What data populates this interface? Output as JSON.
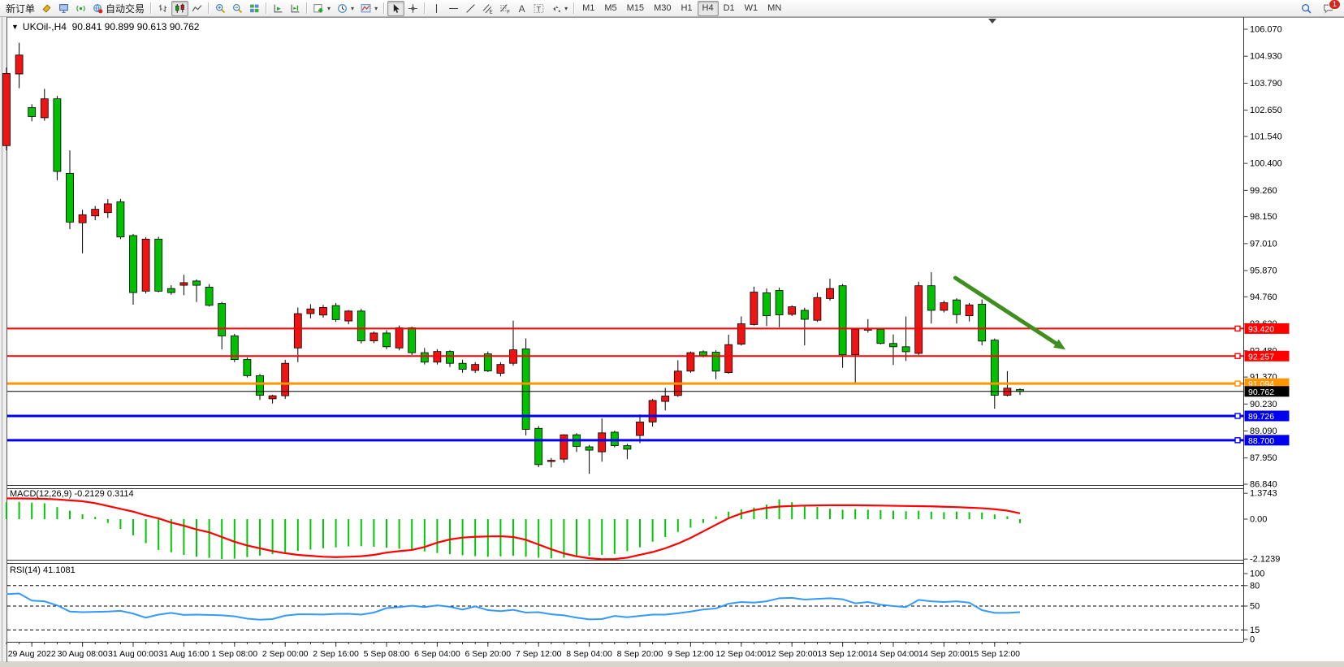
{
  "header": {
    "symbol": "UKOil-,H4",
    "ohlc": "90.841 90.899 90.613 90.762"
  },
  "toolbar": {
    "chat_badge": "1",
    "groups": [
      {
        "items": [
          {
            "name": "new-order-button",
            "label": "新订单"
          },
          {
            "name": "chart-window-icon",
            "icon": "gold-doc"
          },
          {
            "name": "profile-icon",
            "icon": "blue-monitor"
          },
          {
            "name": "signals-icon",
            "icon": "green-signal"
          },
          {
            "name": "auto-trading-button",
            "icon": "globe",
            "label": "自动交易"
          }
        ]
      },
      {
        "items": [
          {
            "name": "bar-chart-type-icon",
            "icon": "bars"
          },
          {
            "name": "candlestick-chart-type-icon",
            "icon": "candles",
            "active": true
          },
          {
            "name": "line-chart-type-icon",
            "icon": "linechart"
          }
        ]
      },
      {
        "items": [
          {
            "name": "zoom-in-icon",
            "icon": "zoom-in"
          },
          {
            "name": "zoom-out-icon",
            "icon": "zoom-out"
          },
          {
            "name": "tile-windows-icon",
            "icon": "tile"
          }
        ]
      },
      {
        "items": [
          {
            "name": "auto-scroll-icon",
            "icon": "autoscroll"
          },
          {
            "name": "chart-shift-icon",
            "icon": "shift"
          }
        ]
      },
      {
        "items": [
          {
            "name": "add-indicator-icon",
            "icon": "indicator-plus",
            "dropdown": true
          },
          {
            "name": "periods-icon",
            "icon": "clock",
            "dropdown": true
          },
          {
            "name": "templates-icon",
            "icon": "template",
            "dropdown": true
          }
        ]
      },
      {
        "items": [
          {
            "name": "cursor-icon",
            "icon": "cursor",
            "active": true
          },
          {
            "name": "crosshair-icon",
            "icon": "crosshair"
          }
        ]
      },
      {
        "items": [
          {
            "name": "vertical-line-icon",
            "icon": "vline"
          },
          {
            "name": "horizontal-line-icon",
            "icon": "hline"
          },
          {
            "name": "trendline-icon",
            "icon": "trend"
          },
          {
            "name": "equidistant-channel-icon",
            "icon": "channel"
          },
          {
            "name": "fibonacci-icon",
            "icon": "fibo"
          },
          {
            "name": "text-icon",
            "icon": "textA"
          },
          {
            "name": "text-label-icon",
            "icon": "textlabel"
          },
          {
            "name": "arrows-icon",
            "icon": "arrows",
            "dropdown": true
          }
        ]
      },
      {
        "items": [
          {
            "name": "tf-m1-button",
            "label": "M1",
            "tf": true
          },
          {
            "name": "tf-m5-button",
            "label": "M5",
            "tf": true
          },
          {
            "name": "tf-m15-button",
            "label": "M15",
            "tf": true
          },
          {
            "name": "tf-m30-button",
            "label": "M30",
            "tf": true
          },
          {
            "name": "tf-h1-button",
            "label": "H1",
            "tf": true
          },
          {
            "name": "tf-h4-button",
            "label": "H4",
            "tf": true,
            "active": true
          },
          {
            "name": "tf-d1-button",
            "label": "D1",
            "tf": true
          },
          {
            "name": "tf-w1-button",
            "label": "W1",
            "tf": true
          },
          {
            "name": "tf-mn-button",
            "label": "MN",
            "tf": true
          }
        ]
      }
    ]
  },
  "chart_data": {
    "type": "candlestick",
    "timeframe": "H4",
    "symbol": "UKOil-",
    "colors": {
      "bull": "#ee1414",
      "bear": "#00c000",
      "wick": "#000000",
      "macd_hist": "#00c800",
      "macd_signal": "#ff0000",
      "rsi": "#3399ff",
      "arrow": "#3f8f1f"
    },
    "price_axis": [
      106.07,
      104.93,
      103.79,
      102.65,
      101.54,
      100.4,
      99.26,
      98.15,
      97.01,
      95.87,
      94.76,
      93.62,
      92.48,
      91.37,
      90.23,
      89.09,
      87.95,
      86.84
    ],
    "hlines": [
      {
        "value": 93.42,
        "color": "#ff0000",
        "width": 2,
        "handle": true
      },
      {
        "value": 92.257,
        "color": "#ff0000",
        "width": 2,
        "handle": true
      },
      {
        "value": 91.094,
        "color": "#ff9500",
        "width": 3,
        "handle": true
      },
      {
        "value": 90.762,
        "color": "#000000",
        "width": 1,
        "handle": false,
        "role": "current-price"
      },
      {
        "value": 89.726,
        "color": "#0000ee",
        "width": 3,
        "handle": true
      },
      {
        "value": 88.7,
        "color": "#0000ee",
        "width": 3,
        "handle": true
      }
    ],
    "candles": [
      [
        101.15,
        104.45,
        100.95,
        104.2
      ],
      [
        104.18,
        105.5,
        103.58,
        104.98
      ],
      [
        102.76,
        102.9,
        102.18,
        102.38
      ],
      [
        102.33,
        103.55,
        102.2,
        103.13
      ],
      [
        103.13,
        103.25,
        99.69,
        100.06
      ],
      [
        99.98,
        100.95,
        97.62,
        97.92
      ],
      [
        97.89,
        98.44,
        96.6,
        98.23
      ],
      [
        98.18,
        98.6,
        98.0,
        98.46
      ],
      [
        98.32,
        98.89,
        98.09,
        98.69
      ],
      [
        98.78,
        98.9,
        97.2,
        97.29
      ],
      [
        97.35,
        97.42,
        94.43,
        94.94
      ],
      [
        95.0,
        97.28,
        94.9,
        97.2
      ],
      [
        97.2,
        97.3,
        94.95,
        95.0
      ],
      [
        95.11,
        95.25,
        94.85,
        94.94
      ],
      [
        95.25,
        95.69,
        94.83,
        95.36
      ],
      [
        95.43,
        95.5,
        94.54,
        95.25
      ],
      [
        95.17,
        95.3,
        94.35,
        94.4
      ],
      [
        94.48,
        94.55,
        92.54,
        93.11
      ],
      [
        93.11,
        93.2,
        92.0,
        92.11
      ],
      [
        92.11,
        92.2,
        91.35,
        91.43
      ],
      [
        91.43,
        91.5,
        90.4,
        90.6
      ],
      [
        90.45,
        90.62,
        90.25,
        90.58
      ],
      [
        90.58,
        92.1,
        90.45,
        91.95
      ],
      [
        92.6,
        94.31,
        92.0,
        94.05
      ],
      [
        94.05,
        94.45,
        93.85,
        94.25
      ],
      [
        93.99,
        94.42,
        93.88,
        94.31
      ],
      [
        94.39,
        94.5,
        93.7,
        93.8
      ],
      [
        93.74,
        94.2,
        93.6,
        94.16
      ],
      [
        94.16,
        94.25,
        92.79,
        92.9
      ],
      [
        92.9,
        93.3,
        92.8,
        93.23
      ],
      [
        93.23,
        93.35,
        92.55,
        92.65
      ],
      [
        92.6,
        93.55,
        92.5,
        93.45
      ],
      [
        93.45,
        93.5,
        92.3,
        92.4
      ],
      [
        92.4,
        92.6,
        91.9,
        92.0
      ],
      [
        92.0,
        92.55,
        91.9,
        92.45
      ],
      [
        92.45,
        92.5,
        91.8,
        91.95
      ],
      [
        91.95,
        92.1,
        91.55,
        91.7
      ],
      [
        91.65,
        92.0,
        91.55,
        91.9
      ],
      [
        92.35,
        92.45,
        91.58,
        91.63
      ],
      [
        91.53,
        92.0,
        91.4,
        91.9
      ],
      [
        91.95,
        93.75,
        91.85,
        92.52
      ],
      [
        92.56,
        93.0,
        88.9,
        89.16
      ],
      [
        89.2,
        89.3,
        87.56,
        87.67
      ],
      [
        87.8,
        87.95,
        87.55,
        87.85
      ],
      [
        87.9,
        88.95,
        87.75,
        88.93
      ],
      [
        88.93,
        89.0,
        88.2,
        88.44
      ],
      [
        88.42,
        88.5,
        87.28,
        88.28
      ],
      [
        88.21,
        89.62,
        87.79,
        89.01
      ],
      [
        89.04,
        89.1,
        88.4,
        88.47
      ],
      [
        88.47,
        88.55,
        87.9,
        88.32
      ],
      [
        88.9,
        89.79,
        88.58,
        89.47
      ],
      [
        89.47,
        90.45,
        89.28,
        90.38
      ],
      [
        90.34,
        90.91,
        89.96,
        90.57
      ],
      [
        90.59,
        92.08,
        90.53,
        91.62
      ],
      [
        91.62,
        92.45,
        91.55,
        92.4
      ],
      [
        92.44,
        92.5,
        92.2,
        92.28
      ],
      [
        92.42,
        92.5,
        91.28,
        91.62
      ],
      [
        91.56,
        93.16,
        91.51,
        92.74
      ],
      [
        92.76,
        93.93,
        92.7,
        93.62
      ],
      [
        93.59,
        95.19,
        93.55,
        94.96
      ],
      [
        94.93,
        95.11,
        93.53,
        93.96
      ],
      [
        95.03,
        95.15,
        93.47,
        94.0
      ],
      [
        94.02,
        94.4,
        93.95,
        94.34
      ],
      [
        94.19,
        94.3,
        92.71,
        93.81
      ],
      [
        93.77,
        94.94,
        93.7,
        94.73
      ],
      [
        94.69,
        95.53,
        94.6,
        95.11
      ],
      [
        95.23,
        95.3,
        91.76,
        92.31
      ],
      [
        92.31,
        93.45,
        91.07,
        93.39
      ],
      [
        93.35,
        93.82,
        93.25,
        93.42
      ],
      [
        93.39,
        93.45,
        92.75,
        92.79
      ],
      [
        92.79,
        93.17,
        91.88,
        92.65
      ],
      [
        92.65,
        93.93,
        92.05,
        92.44
      ],
      [
        92.37,
        95.4,
        92.3,
        95.23
      ],
      [
        95.23,
        95.8,
        93.63,
        94.19
      ],
      [
        94.19,
        94.6,
        94.1,
        94.51
      ],
      [
        94.63,
        94.7,
        93.63,
        94.01
      ],
      [
        93.96,
        94.5,
        93.72,
        94.42
      ],
      [
        94.45,
        94.65,
        92.71,
        92.89
      ],
      [
        92.93,
        93.0,
        90.03,
        90.6
      ],
      [
        90.6,
        91.62,
        90.55,
        90.9
      ],
      [
        90.841,
        90.899,
        90.613,
        90.762
      ]
    ],
    "time_axis": [
      "29 Aug 2022",
      "30 Aug 08:00",
      "31 Aug 00:00",
      "31 Aug 16:00",
      "1 Sep 08:00",
      "2 Sep 00:00",
      "2 Sep 16:00",
      "5 Sep 08:00",
      "6 Sep 04:00",
      "6 Sep 20:00",
      "7 Sep 12:00",
      "8 Sep 04:00",
      "8 Sep 20:00",
      "9 Sep 12:00",
      "12 Sep 04:00",
      "12 Sep 20:00",
      "13 Sep 12:00",
      "14 Sep 04:00",
      "14 Sep 20:00",
      "15 Sep 12:00"
    ],
    "arrow": {
      "from": {
        "bar": 74.9,
        "price": 95.56
      },
      "to": {
        "bar": 83.6,
        "price": 92.53
      }
    },
    "macd": {
      "label": "MACD(12,26,9) -0.2129 0.3114",
      "axis": [
        1.3743,
        0.0,
        -2.1239
      ],
      "histogram": [
        0.9,
        0.92,
        0.88,
        0.84,
        0.64,
        0.45,
        0.26,
        0.12,
        -0.2,
        -0.52,
        -0.86,
        -1.28,
        -1.64,
        -1.76,
        -1.9,
        -2.0,
        -2.06,
        -2.12,
        -2.1,
        -2.02,
        -1.94,
        -1.86,
        -1.78,
        -1.69,
        -1.62,
        -1.55,
        -1.5,
        -1.45,
        -1.44,
        -1.47,
        -1.52,
        -1.58,
        -1.65,
        -1.72,
        -1.8,
        -1.86,
        -1.92,
        -1.97,
        -2.0,
        -1.98,
        -1.95,
        -2.0,
        -2.05,
        -2.08,
        -2.05,
        -2.0,
        -1.95,
        -1.9,
        -1.85,
        -1.7,
        -1.5,
        -1.2,
        -0.95,
        -0.68,
        -0.45,
        -0.2,
        0.15,
        0.4,
        0.52,
        0.62,
        0.77,
        1.05,
        0.9,
        0.73,
        0.65,
        0.55,
        0.5,
        0.53,
        0.5,
        0.48,
        0.45,
        0.42,
        0.45,
        0.4,
        0.37,
        0.4,
        0.37,
        0.35,
        0.25,
        0.15,
        -0.21
      ],
      "signal": [
        1.1,
        1.1,
        1.09,
        1.08,
        1.05,
        1.0,
        0.95,
        0.85,
        0.7,
        0.55,
        0.4,
        0.2,
        0.04,
        -0.18,
        -0.35,
        -0.55,
        -0.7,
        -0.95,
        -1.2,
        -1.4,
        -1.55,
        -1.7,
        -1.81,
        -1.9,
        -1.95,
        -2.0,
        -2.02,
        -2.0,
        -1.97,
        -1.9,
        -1.78,
        -1.7,
        -1.64,
        -1.48,
        -1.25,
        -1.08,
        -0.98,
        -0.94,
        -0.92,
        -0.91,
        -0.95,
        -1.1,
        -1.35,
        -1.6,
        -1.82,
        -1.98,
        -2.08,
        -2.13,
        -2.12,
        -2.05,
        -1.9,
        -1.75,
        -1.55,
        -1.3,
        -1.0,
        -0.65,
        -0.3,
        0.05,
        0.3,
        0.48,
        0.6,
        0.67,
        0.7,
        0.72,
        0.73,
        0.74,
        0.74,
        0.74,
        0.73,
        0.72,
        0.71,
        0.7,
        0.69,
        0.68,
        0.66,
        0.64,
        0.61,
        0.58,
        0.53,
        0.45,
        0.31
      ]
    },
    "rsi": {
      "label": "RSI(14) 41.1081",
      "axis": [
        100,
        80,
        50,
        15,
        0
      ],
      "levels": [
        80,
        50,
        15
      ],
      "values": [
        67.5,
        68.5,
        58,
        57,
        51,
        42,
        41,
        41.5,
        42,
        43,
        39,
        33,
        37.5,
        40,
        37,
        37.5,
        37,
        36.5,
        35,
        31.5,
        30,
        31,
        36,
        38,
        38,
        37.7,
        38.5,
        38.7,
        37.5,
        40.5,
        47,
        48.5,
        50.5,
        48.5,
        51,
        49,
        44.8,
        49.5,
        44,
        42.5,
        44.5,
        40.5,
        41,
        38,
        36.5,
        33,
        30.5,
        31,
        35.5,
        33.7,
        35.5,
        37.5,
        37.5,
        39.5,
        42,
        45,
        46.5,
        53.5,
        56,
        55,
        57,
        61.5,
        62,
        59.5,
        60.5,
        61.5,
        60,
        54,
        56,
        52,
        50,
        48.5,
        59,
        57,
        56,
        57,
        55,
        44,
        40,
        40,
        41.1
      ]
    }
  }
}
